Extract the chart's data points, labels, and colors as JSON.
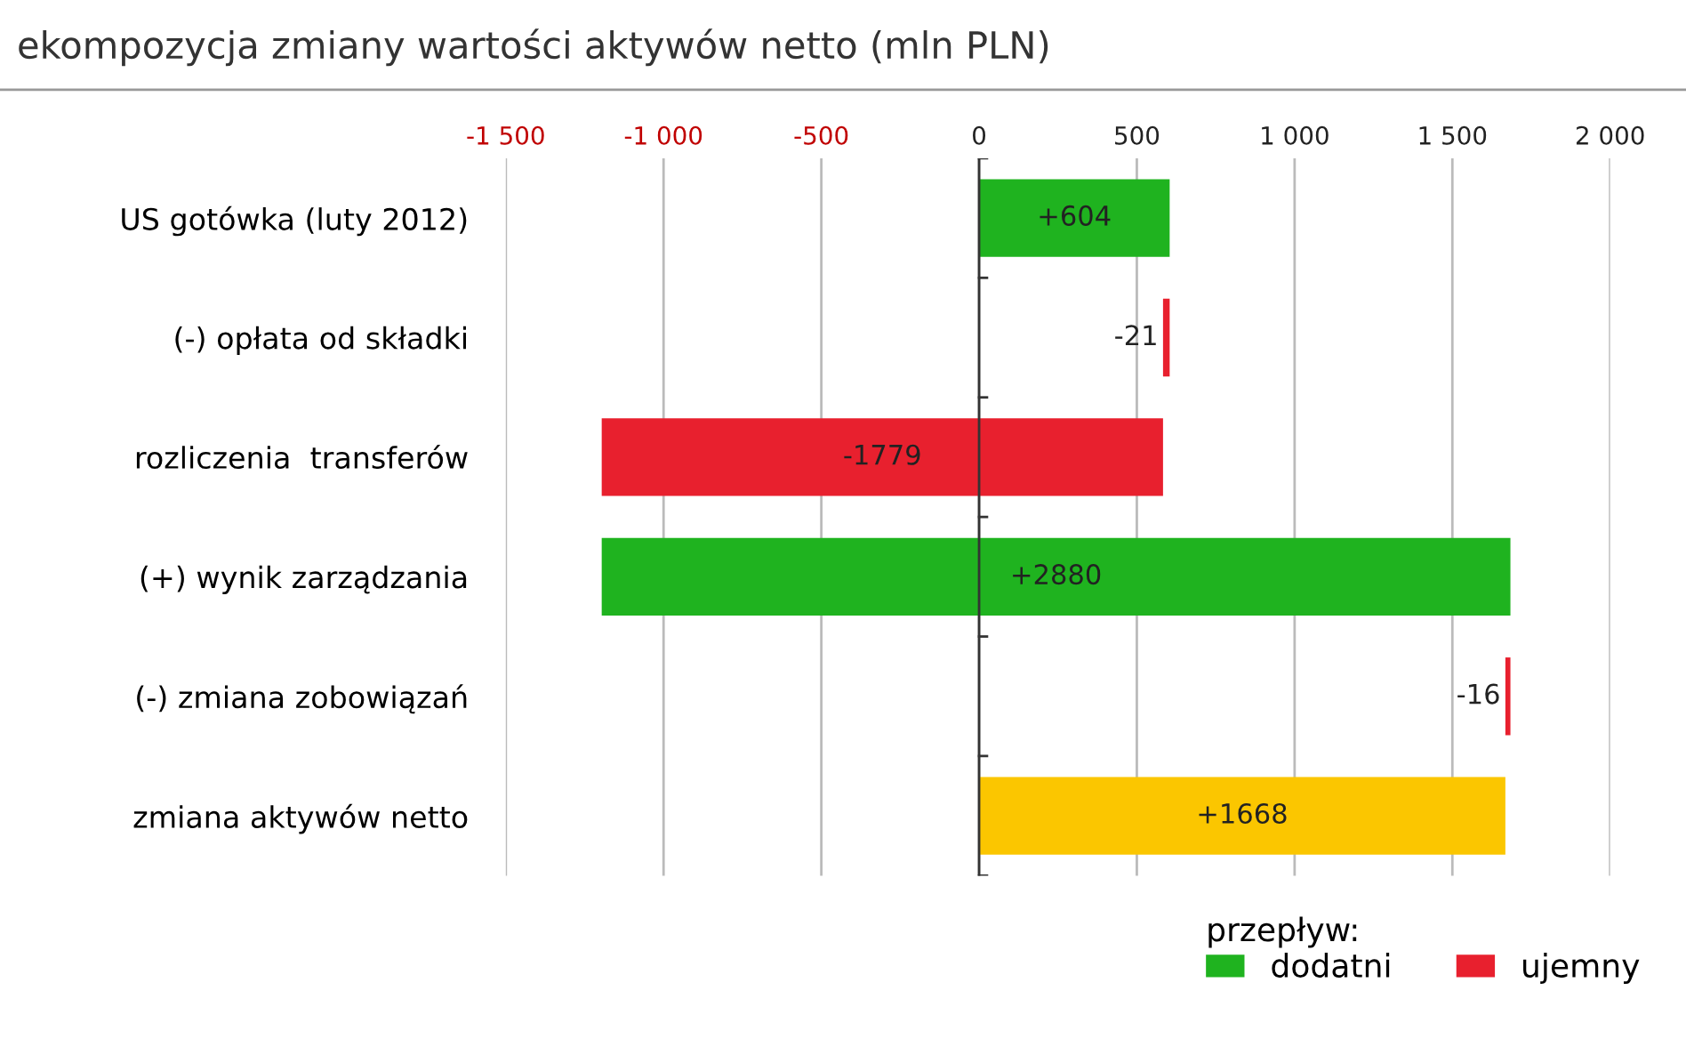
{
  "chart_data": {
    "type": "bar",
    "orientation": "horizontal",
    "title": "ekompozycja zmiany wartości aktywów netto (mln PLN)",
    "categories": [
      "US gotówka (luty 2012)",
      "(-) opłata od składki",
      "rozliczenia  transferów",
      "(+) wynik zarządzania",
      "(-) zmiana zobowiązań",
      "zmiana aktywów netto"
    ],
    "series": [
      {
        "name": "dodatni",
        "color": "#1fb31f",
        "base": [
          0,
          null,
          null,
          -1196,
          null,
          null
        ],
        "values": [
          604,
          null,
          null,
          2880,
          null,
          null
        ],
        "value_labels": [
          "+604",
          null,
          null,
          "+2880",
          null,
          null
        ]
      },
      {
        "name": "ujemny",
        "color": "#e8202e",
        "base": [
          null,
          604,
          583,
          null,
          1684,
          null
        ],
        "values": [
          null,
          -21,
          -1779,
          null,
          -16,
          null
        ],
        "value_labels": [
          null,
          "-21",
          "-1779",
          null,
          "-16",
          null
        ]
      },
      {
        "color": "#fbc600",
        "base": [
          null,
          null,
          null,
          null,
          null,
          0
        ],
        "values": [
          null,
          null,
          null,
          null,
          null,
          1668
        ],
        "value_labels": [
          null,
          null,
          null,
          null,
          null,
          "+1668"
        ]
      }
    ],
    "xlim": [
      -1500,
      2000
    ],
    "xticks": [
      {
        "value": -1500,
        "label": "-1 500"
      },
      {
        "value": -1000,
        "label": "-1 000"
      },
      -500,
      0,
      500,
      {
        "value": 1000,
        "label": "1 000"
      },
      {
        "value": 1500,
        "label": "1 500"
      },
      {
        "value": 2000,
        "label": "2 000"
      }
    ],
    "grid": "x",
    "legend": "bottom right",
    "legend_title": "przepływ:"
  }
}
